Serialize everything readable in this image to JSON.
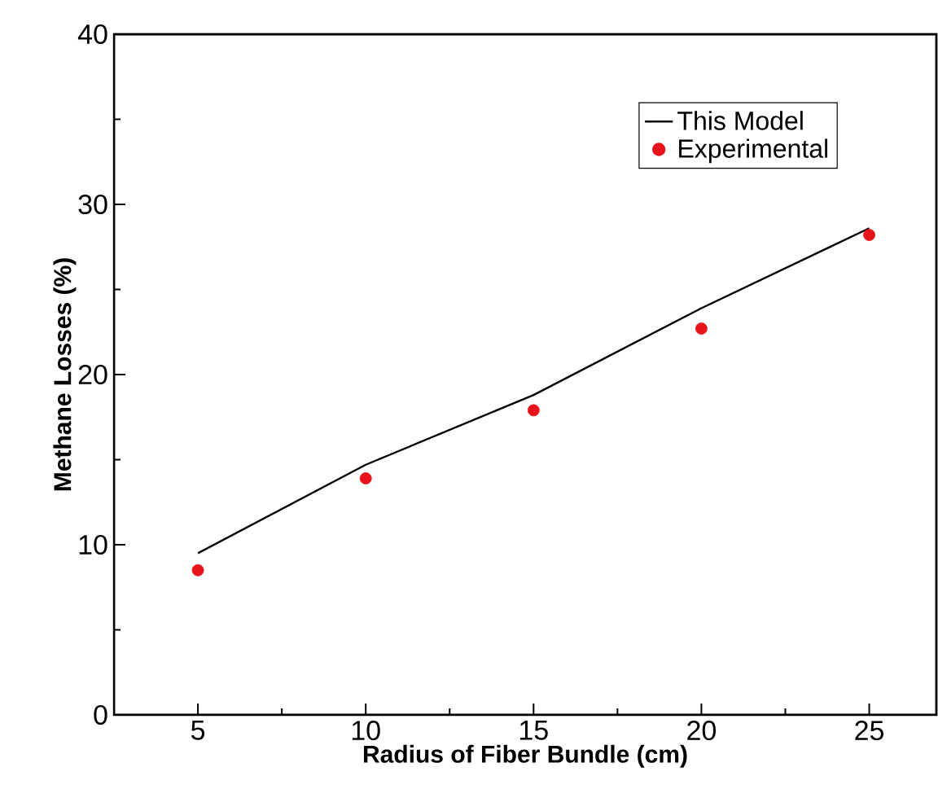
{
  "chart_data": {
    "type": "line",
    "xlabel": "Radius of Fiber Bundle (cm)",
    "ylabel": "Methane Losses (%)",
    "x": [
      5,
      10,
      15,
      20,
      25
    ],
    "series": [
      {
        "name": "This Model",
        "color": "#000000",
        "marker": "none",
        "line_style": "solid",
        "values": [
          9.5,
          14.7,
          18.8,
          23.9,
          28.6
        ]
      },
      {
        "name": "Experimental",
        "type": "scatter",
        "color": "#e8141b",
        "marker": "circle",
        "values": [
          8.5,
          13.9,
          17.9,
          22.7,
          28.2
        ]
      }
    ],
    "xlim": [
      2.5,
      27
    ],
    "ylim": [
      0,
      40
    ],
    "xticks": [
      5,
      10,
      15,
      20,
      25
    ],
    "yticks": [
      0,
      10,
      20,
      30,
      40
    ],
    "grid": false,
    "legend": "top right"
  }
}
